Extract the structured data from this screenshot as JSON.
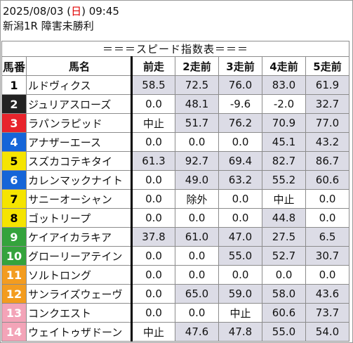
{
  "header": {
    "date_prefix": "2025/08/03 (",
    "day": "日",
    "date_suffix": ") 09:45",
    "race": "新潟1R 障害未勝利"
  },
  "table": {
    "title": "＝＝＝スピード指数表＝＝＝",
    "columns": [
      "馬番",
      "馬名",
      "前走",
      "2走前",
      "3走前",
      "4走前",
      "5走前"
    ],
    "rows": [
      {
        "num": "1",
        "name": "ルドヴィクス",
        "vals": [
          "58.5",
          "72.5",
          "76.0",
          "83.0",
          "61.9"
        ],
        "bg": "#ffffff",
        "fg": "#000000",
        "shade": [
          true,
          true,
          true,
          true,
          true
        ]
      },
      {
        "num": "2",
        "name": "ジュリアスローズ",
        "vals": [
          "0.0",
          "48.1",
          "-9.6",
          "-2.0",
          "32.7"
        ],
        "bg": "#222222",
        "fg": "#ffffff",
        "shade": [
          false,
          true,
          false,
          false,
          true
        ]
      },
      {
        "num": "3",
        "name": "ラパンラピッド",
        "vals": [
          "中止",
          "51.7",
          "76.2",
          "70.9",
          "77.0"
        ],
        "bg": "#e8242c",
        "fg": "#ffffff",
        "shade": [
          false,
          true,
          true,
          true,
          true
        ]
      },
      {
        "num": "4",
        "name": "アナザーエース",
        "vals": [
          "0.0",
          "0.0",
          "0.0",
          "45.1",
          "43.2"
        ],
        "bg": "#1565d8",
        "fg": "#ffffff",
        "shade": [
          false,
          false,
          false,
          true,
          true
        ]
      },
      {
        "num": "5",
        "name": "スズカコテキタイ",
        "vals": [
          "61.3",
          "92.7",
          "69.4",
          "82.7",
          "86.7"
        ],
        "bg": "#f5e400",
        "fg": "#000000",
        "shade": [
          true,
          true,
          true,
          true,
          true
        ]
      },
      {
        "num": "6",
        "name": "カレンマックナイト",
        "vals": [
          "0.0",
          "49.0",
          "63.2",
          "55.2",
          "60.6"
        ],
        "bg": "#1565d8",
        "fg": "#ffffff",
        "shade": [
          false,
          true,
          true,
          true,
          true
        ]
      },
      {
        "num": "7",
        "name": "サニーオーシャン",
        "vals": [
          "0.0",
          "除外",
          "0.0",
          "中止",
          "0.0"
        ],
        "bg": "#f5e400",
        "fg": "#000000",
        "shade": [
          false,
          false,
          false,
          false,
          false
        ]
      },
      {
        "num": "8",
        "name": "ゴットリープ",
        "vals": [
          "0.0",
          "0.0",
          "0.0",
          "44.8",
          "0.0"
        ],
        "bg": "#f5e400",
        "fg": "#000000",
        "shade": [
          false,
          false,
          false,
          true,
          false
        ]
      },
      {
        "num": "9",
        "name": "ケイアイカラキア",
        "vals": [
          "37.8",
          "61.0",
          "47.0",
          "27.5",
          "6.5"
        ],
        "bg": "#34a33c",
        "fg": "#ffffff",
        "shade": [
          true,
          true,
          true,
          true,
          true
        ]
      },
      {
        "num": "10",
        "name": "グローリーアテイン",
        "vals": [
          "0.0",
          "0.0",
          "55.0",
          "52.7",
          "30.7"
        ],
        "bg": "#34a33c",
        "fg": "#ffffff",
        "shade": [
          false,
          false,
          true,
          true,
          true
        ]
      },
      {
        "num": "11",
        "name": "ソルトロング",
        "vals": [
          "0.0",
          "0.0",
          "0.0",
          "0.0",
          "0.0"
        ],
        "bg": "#f39c1f",
        "fg": "#ffffff",
        "shade": [
          false,
          false,
          false,
          false,
          false
        ]
      },
      {
        "num": "12",
        "name": "サンライズウェーヴ",
        "vals": [
          "0.0",
          "65.0",
          "59.0",
          "58.0",
          "43.6"
        ],
        "bg": "#f39c1f",
        "fg": "#ffffff",
        "shade": [
          false,
          true,
          true,
          true,
          true
        ]
      },
      {
        "num": "13",
        "name": "コンクエスト",
        "vals": [
          "0.0",
          "0.0",
          "中止",
          "60.6",
          "73.7"
        ],
        "bg": "#f3a4b8",
        "fg": "#ffffff",
        "shade": [
          false,
          false,
          false,
          true,
          true
        ]
      },
      {
        "num": "14",
        "name": "ウェイトゥザドーン",
        "vals": [
          "中止",
          "47.6",
          "47.8",
          "55.0",
          "54.0"
        ],
        "bg": "#f3a4b8",
        "fg": "#ffffff",
        "shade": [
          false,
          true,
          true,
          true,
          true
        ]
      }
    ]
  }
}
